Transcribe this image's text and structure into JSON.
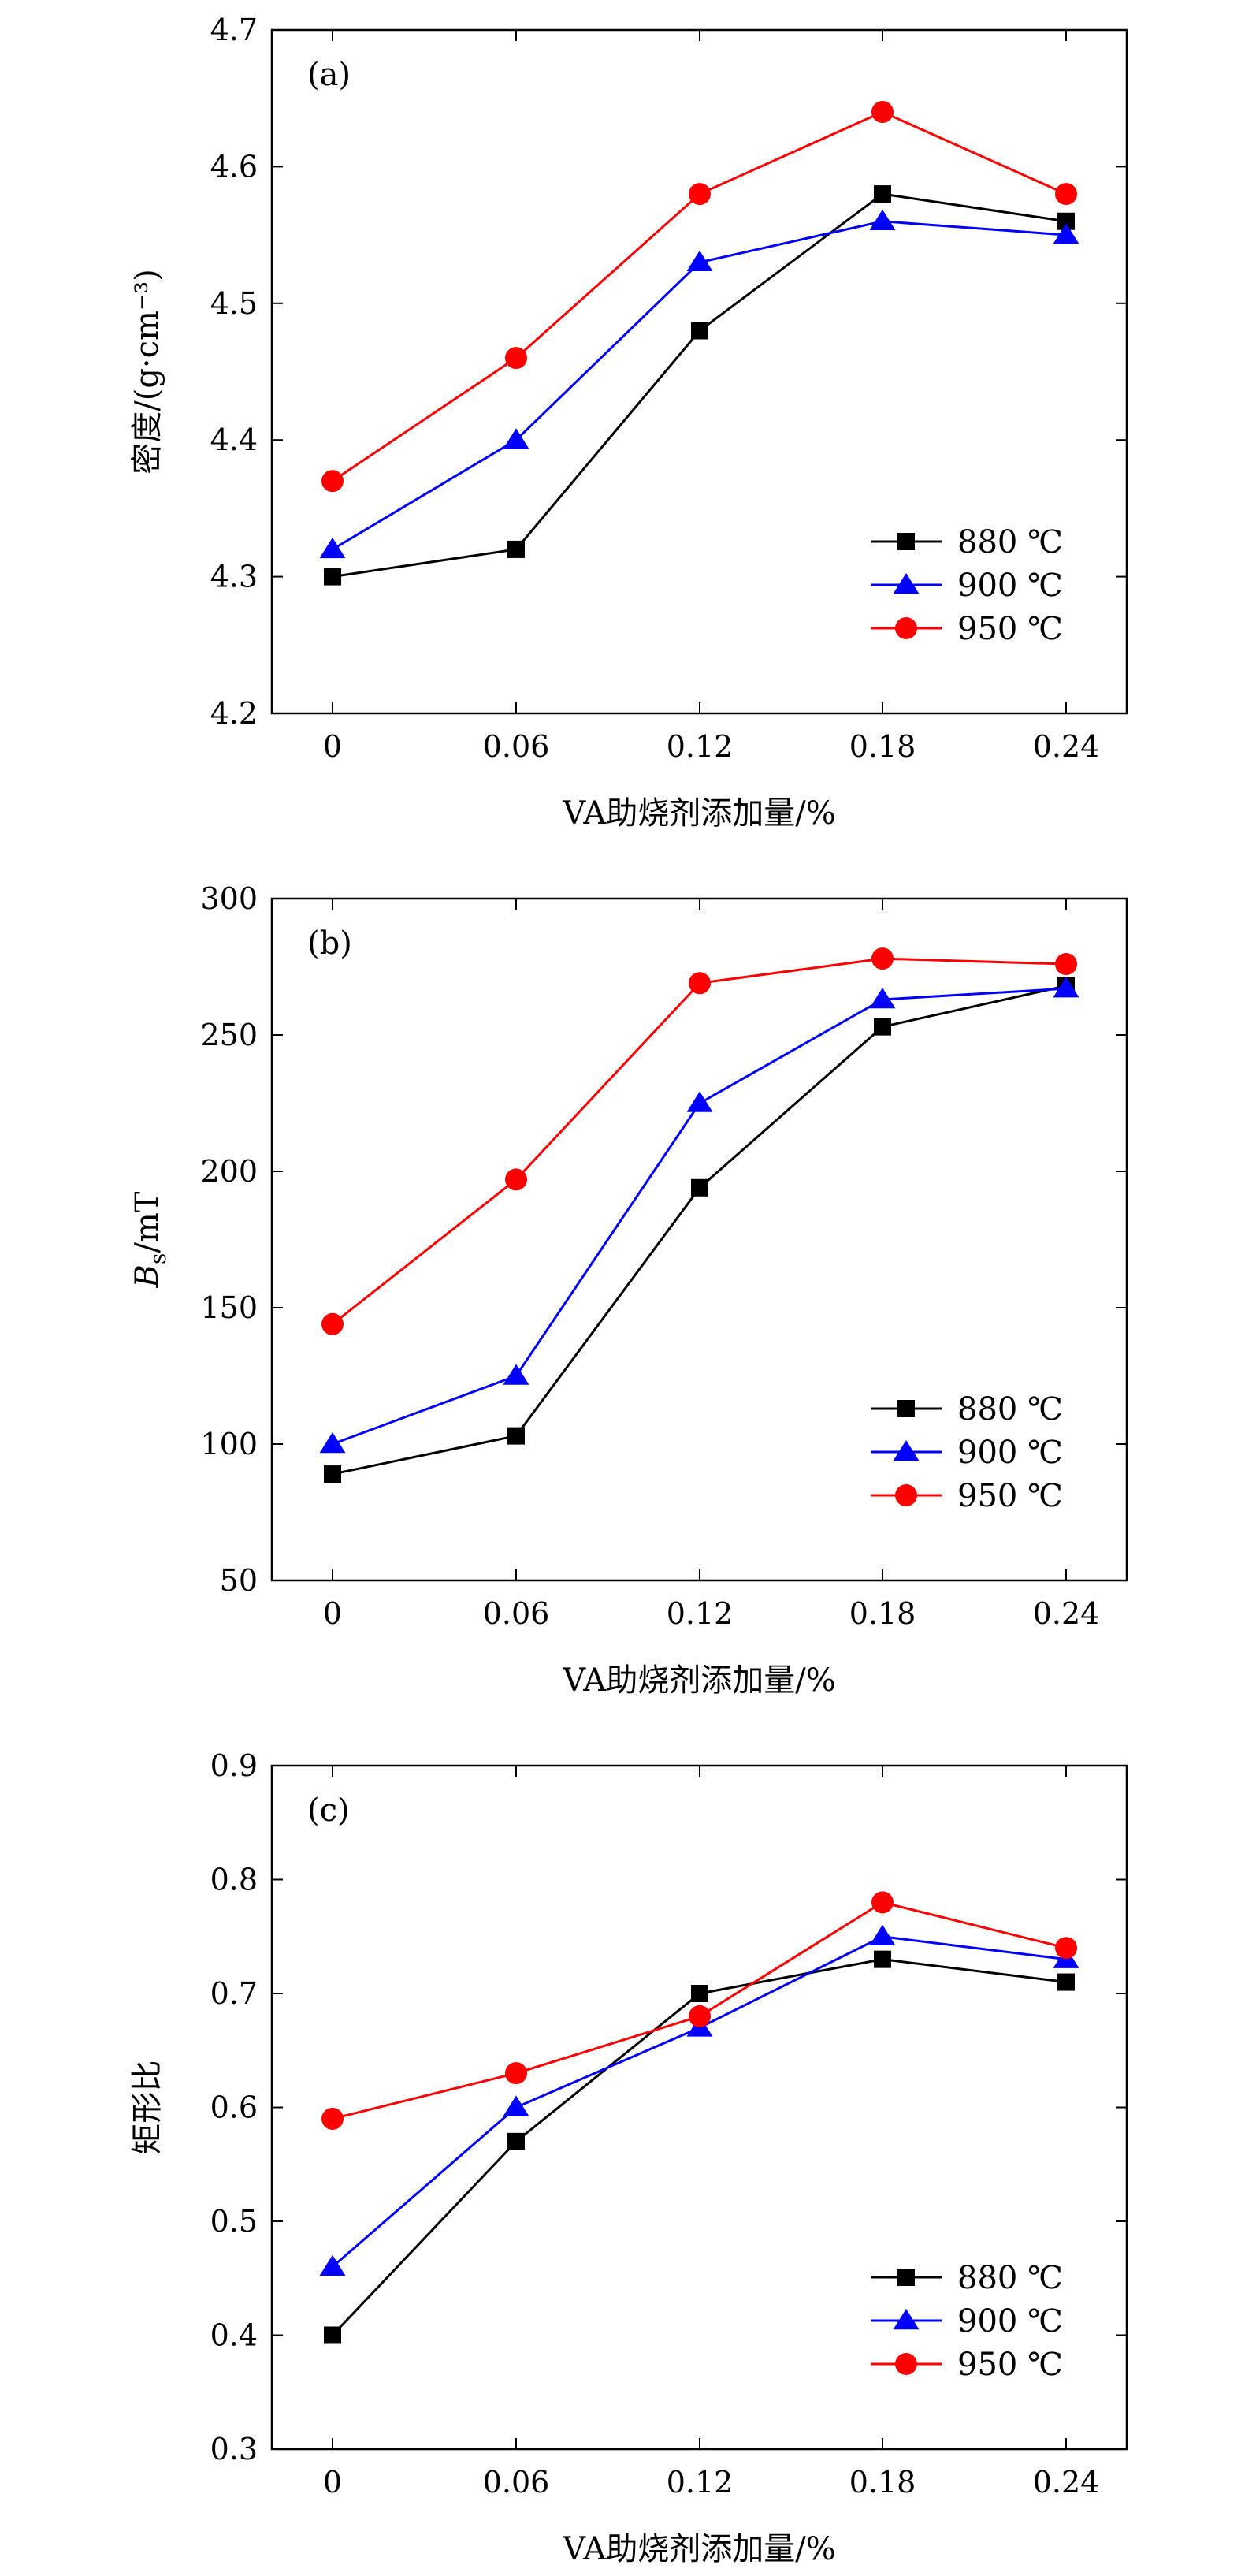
{
  "colors": {
    "880": "#000000",
    "900": "#0000ff",
    "950": "#ff0000"
  },
  "chart_data": [
    {
      "type": "line",
      "panel_label": "(a)",
      "xlabel": "VA助烧剂添加量/%",
      "ylabel": "密度/(g·cm⁻³)",
      "categories": [
        "0",
        "0.06",
        "0.12",
        "0.18",
        "0.24"
      ],
      "ylim": [
        4.2,
        4.7
      ],
      "yticks": [
        "4.2",
        "4.3",
        "4.4",
        "4.5",
        "4.6",
        "4.7"
      ],
      "legend_position": "lower-right",
      "series": [
        {
          "name": "880 ℃",
          "marker": "square",
          "color": "#000000",
          "values": [
            4.3,
            4.32,
            4.48,
            4.58,
            4.56
          ]
        },
        {
          "name": "900 ℃",
          "marker": "triangle",
          "color": "#0000ff",
          "values": [
            4.32,
            4.4,
            4.53,
            4.56,
            4.55
          ]
        },
        {
          "name": "950 ℃",
          "marker": "circle",
          "color": "#ff0000",
          "values": [
            4.37,
            4.46,
            4.58,
            4.64,
            4.58
          ]
        }
      ]
    },
    {
      "type": "line",
      "panel_label": "(b)",
      "xlabel": "VA助烧剂添加量/%",
      "ylabel_main": "B",
      "ylabel_sub": "s",
      "ylabel_rest": "/mT",
      "categories": [
        "0",
        "0.06",
        "0.12",
        "0.18",
        "0.24"
      ],
      "ylim": [
        50,
        300
      ],
      "yticks": [
        "50",
        "100",
        "150",
        "200",
        "250",
        "300"
      ],
      "legend_position": "lower-right",
      "series": [
        {
          "name": "880 ℃",
          "marker": "square",
          "color": "#000000",
          "values": [
            89,
            103,
            194,
            253,
            268
          ]
        },
        {
          "name": "900 ℃",
          "marker": "triangle",
          "color": "#0000ff",
          "values": [
            100,
            125,
            225,
            263,
            267
          ]
        },
        {
          "name": "950 ℃",
          "marker": "circle",
          "color": "#ff0000",
          "values": [
            144,
            197,
            269,
            278,
            276
          ]
        }
      ]
    },
    {
      "type": "line",
      "panel_label": "(c)",
      "xlabel": "VA助烧剂添加量/%",
      "ylabel": "矩形比",
      "categories": [
        "0",
        "0.06",
        "0.12",
        "0.18",
        "0.24"
      ],
      "ylim": [
        0.3,
        0.9
      ],
      "yticks": [
        "0.3",
        "0.4",
        "0.5",
        "0.6",
        "0.7",
        "0.8",
        "0.9"
      ],
      "legend_position": "lower-right",
      "series": [
        {
          "name": "880 ℃",
          "marker": "square",
          "color": "#000000",
          "values": [
            0.4,
            0.57,
            0.7,
            0.73,
            0.71
          ]
        },
        {
          "name": "900 ℃",
          "marker": "triangle",
          "color": "#0000ff",
          "values": [
            0.46,
            0.6,
            0.67,
            0.75,
            0.73
          ]
        },
        {
          "name": "950 ℃",
          "marker": "circle",
          "color": "#ff0000",
          "values": [
            0.59,
            0.63,
            0.68,
            0.78,
            0.74
          ]
        }
      ]
    }
  ]
}
